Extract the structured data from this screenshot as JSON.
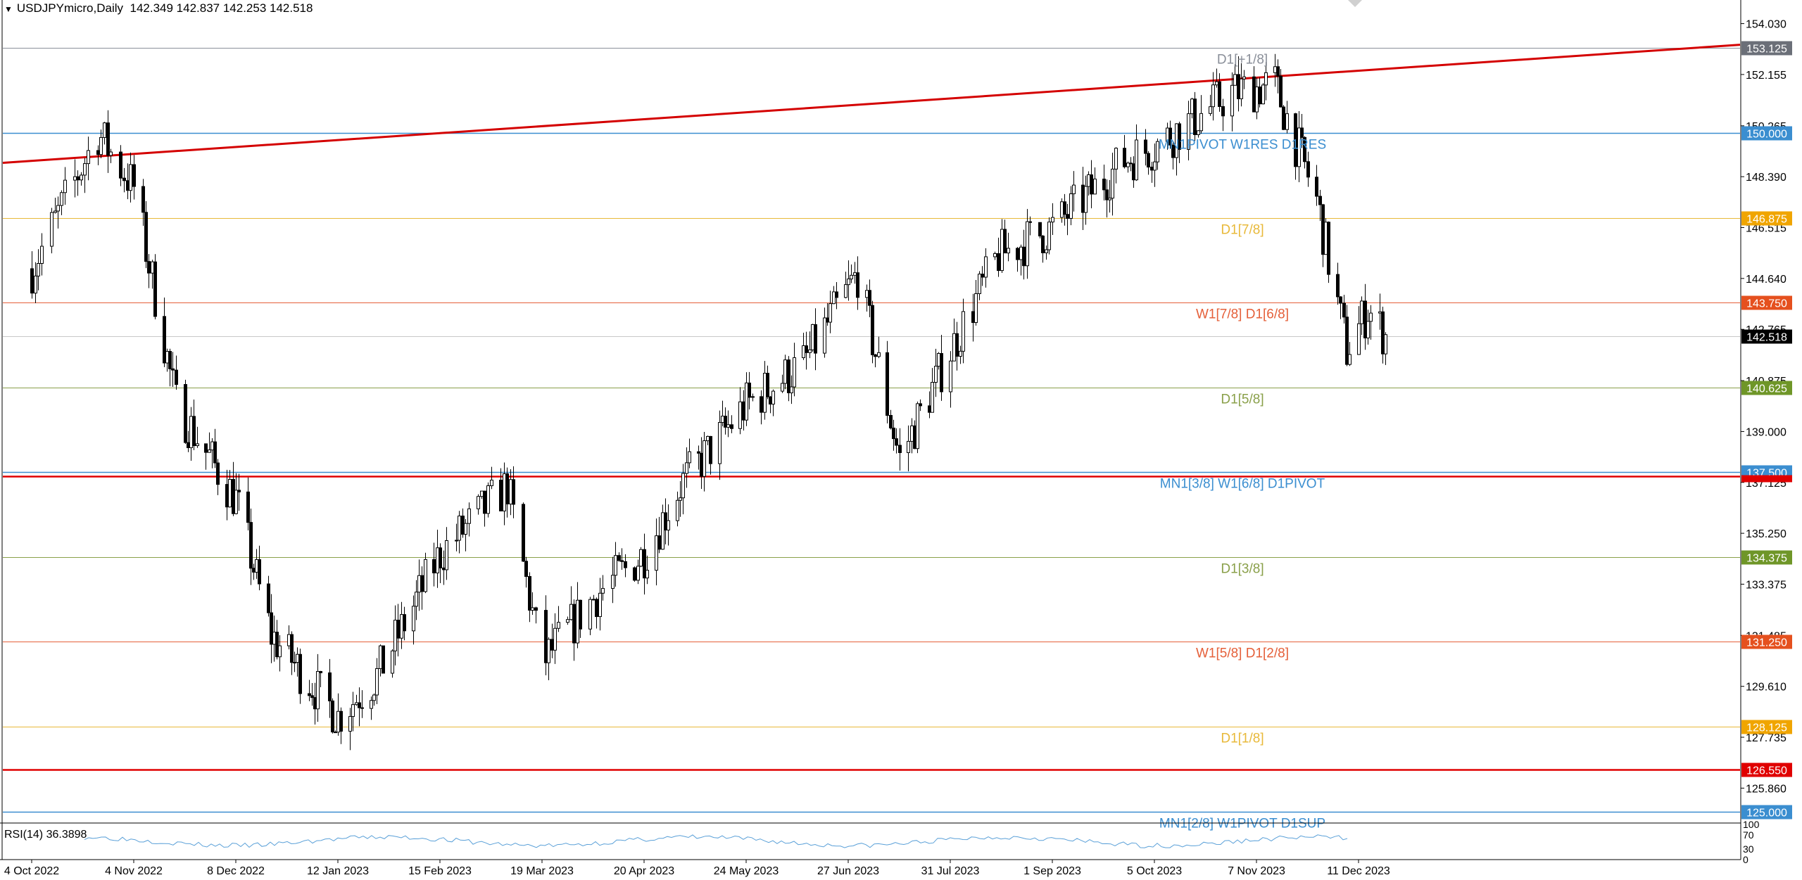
{
  "header": {
    "symbol": "USDJPYmicro,Daily",
    "ohlc": "142.349 142.837 142.253 142.518"
  },
  "rsi": {
    "label": "RSI(14) 36.3898",
    "levels": [
      "100",
      "70",
      "30",
      "0"
    ]
  },
  "colors": {
    "bull_candle": "#ffffff",
    "bear_candle": "#000000",
    "trendline": "#d40000",
    "blue_level": "#3b8ed0",
    "current_price_tag": "#000000"
  },
  "chart_data": {
    "type": "candlestick",
    "title": "USDJPYmicro,Daily",
    "y_ticks": [
      "154.030",
      "152.155",
      "150.265",
      "148.390",
      "146.515",
      "144.640",
      "142.765",
      "140.875",
      "139.000",
      "137.125",
      "135.250",
      "133.375",
      "131.485",
      "129.610",
      "127.735",
      "125.860"
    ],
    "ylim": [
      124.6,
      154.9
    ],
    "x_ticks": [
      "4 Oct 2022",
      "4 Nov 2022",
      "8 Dec 2022",
      "12 Jan 2023",
      "15 Feb 2023",
      "19 Mar 2023",
      "20 Apr 2023",
      "24 May 2023",
      "27 Jun 2023",
      "31 Jul 2023",
      "1 Sep 2023",
      "5 Oct 2023",
      "7 Nov 2023",
      "11 Dec 2023"
    ],
    "current_price": "142.518",
    "levels": [
      {
        "price": 153.125,
        "tag": "153.125",
        "label": "D1[+1/8]",
        "color": "#8a8f99",
        "tag_color": "#6b6f78"
      },
      {
        "price": 150.0,
        "tag": "150.000",
        "label": "MN1PIVOT W1RES D1RES",
        "color": "#3b8ed0",
        "tag_color": "#3b8ed0"
      },
      {
        "price": 146.875,
        "tag": "146.875",
        "label": "D1[7/8]",
        "color": "#e8b93a",
        "tag_color": "#f0a500"
      },
      {
        "price": 143.75,
        "tag": "143.750",
        "label": "W1[7/8] D1[6/8]",
        "color": "#e5603a",
        "tag_color": "#e5501e"
      },
      {
        "price": 140.625,
        "tag": "140.625",
        "label": "D1[5/8]",
        "color": "#8aa04a",
        "tag_color": "#6f9628"
      },
      {
        "price": 137.5,
        "tag": "137.500",
        "label": "MN1[3/8] W1[6/8] D1PIVOT",
        "color": "#3b8ed0",
        "tag_color": "#3b8ed0"
      },
      {
        "price": 134.375,
        "tag": "134.375",
        "label": "D1[3/8]",
        "color": "#8aa04a",
        "tag_color": "#6f9628"
      },
      {
        "price": 131.25,
        "tag": "131.250",
        "label": "W1[5/8] D1[2/8]",
        "color": "#e5603a",
        "tag_color": "#e5501e"
      },
      {
        "price": 128.125,
        "tag": "128.125",
        "label": "D1[1/8]",
        "color": "#e8b93a",
        "tag_color": "#f0a500"
      },
      {
        "price": 126.55,
        "tag": "126.550",
        "label": "",
        "color": "#e00000",
        "tag_color": "#e00000"
      },
      {
        "price": 125.0,
        "tag": "125.000",
        "label": "MN1[2/8] W1PIVOT D1SUP",
        "color": "#3b8ed0",
        "tag_color": "#3b8ed0"
      }
    ],
    "extra_red_line": 137.35,
    "trendline": {
      "from": {
        "date": "4 Oct 2022",
        "price": 148.9
      },
      "to": {
        "date": "end",
        "price": 153.25
      }
    },
    "price_path": [
      {
        "date": "4 Oct 2022",
        "close": 145.0
      },
      {
        "date": "24 Oct 2022",
        "close": 150.0
      },
      {
        "date": "4 Nov 2022",
        "close": 148.0
      },
      {
        "date": "18 Nov 2022",
        "close": 140.0
      },
      {
        "date": "8 Dec 2022",
        "close": 136.5
      },
      {
        "date": "20 Dec 2022",
        "close": 131.5
      },
      {
        "date": "12 Jan 2023",
        "close": 128.5
      },
      {
        "date": "25 Jan 2023",
        "close": 130.0
      },
      {
        "date": "15 Feb 2023",
        "close": 134.5
      },
      {
        "date": "8 Mar 2023",
        "close": 137.0
      },
      {
        "date": "19 Mar 2023",
        "close": 130.5
      },
      {
        "date": "5 Apr 2023",
        "close": 133.0
      },
      {
        "date": "20 Apr 2023",
        "close": 134.5
      },
      {
        "date": "2 May 2023",
        "close": 137.0
      },
      {
        "date": "24 May 2023",
        "close": 140.0
      },
      {
        "date": "12 Jun 2023",
        "close": 141.5
      },
      {
        "date": "30 Jun 2023",
        "close": 144.8
      },
      {
        "date": "14 Jul 2023",
        "close": 138.0
      },
      {
        "date": "31 Jul 2023",
        "close": 142.0
      },
      {
        "date": "15 Aug 2023",
        "close": 145.5
      },
      {
        "date": "1 Sep 2023",
        "close": 146.5
      },
      {
        "date": "25 Sep 2023",
        "close": 149.0
      },
      {
        "date": "5 Oct 2023",
        "close": 149.5
      },
      {
        "date": "30 Oct 2023",
        "close": 151.5
      },
      {
        "date": "13 Nov 2023",
        "close": 151.8
      },
      {
        "date": "27 Nov 2023",
        "close": 147.5
      },
      {
        "date": "7 Dec 2023",
        "close": 142.0
      },
      {
        "date": "14 Dec 2023",
        "close": 143.5
      },
      {
        "date": "20 Dec 2023",
        "close": 142.5
      }
    ],
    "rsi_value": 36.3898
  }
}
